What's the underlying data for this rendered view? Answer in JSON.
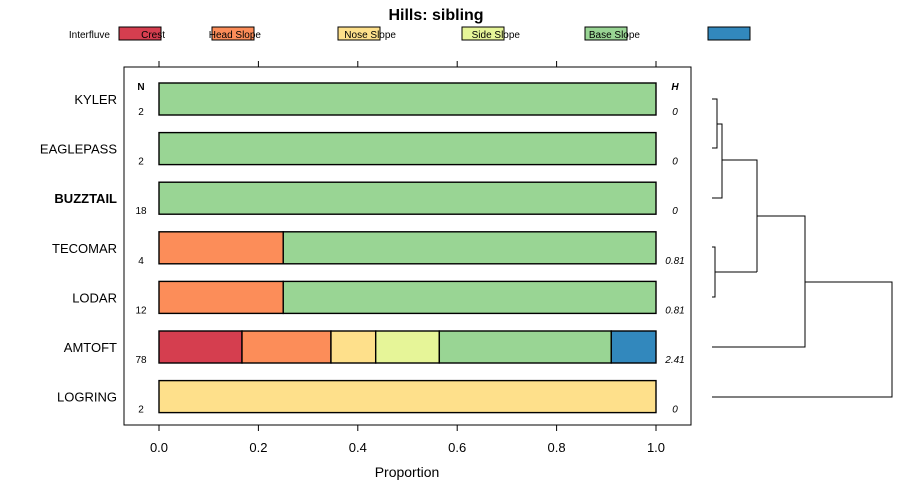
{
  "chart_data": {
    "type": "bar",
    "orientation": "horizontal",
    "stacked": true,
    "title": "Hills: sibling",
    "xlabel": "Proportion",
    "ylabel": "",
    "xlim": [
      -0.07,
      1.07
    ],
    "xticks": [
      0.0,
      0.2,
      0.4,
      0.6,
      0.8,
      1.0
    ],
    "xtick_labels": [
      "0.0",
      "0.2",
      "0.4",
      "0.6",
      "0.8",
      "1.0"
    ],
    "legend_position": "top",
    "n_header": "N",
    "h_header": "H",
    "series": [
      {
        "name": "Interfluve",
        "color": "#d53e4f"
      },
      {
        "name": "Crest",
        "color": "#fc8d59"
      },
      {
        "name": "Head Slope",
        "color": "#fee08b"
      },
      {
        "name": "Nose Slope",
        "color": "#e6f598"
      },
      {
        "name": "Side Slope",
        "color": "#99d594"
      },
      {
        "name": "Base Slope",
        "color": "#3288bd"
      }
    ],
    "categories": [
      {
        "label": "KYLER",
        "bold": false,
        "n": "2",
        "h": "0",
        "values": [
          0,
          0,
          0,
          0,
          1.0,
          0
        ]
      },
      {
        "label": "EAGLEPASS",
        "bold": false,
        "n": "2",
        "h": "0",
        "values": [
          0,
          0,
          0,
          0,
          1.0,
          0
        ]
      },
      {
        "label": "BUZZTAIL",
        "bold": true,
        "n": "18",
        "h": "0",
        "values": [
          0,
          0,
          0,
          0,
          1.0,
          0
        ]
      },
      {
        "label": "TECOMAR",
        "bold": false,
        "n": "4",
        "h": "0.81",
        "values": [
          0,
          0.25,
          0,
          0,
          0.75,
          0
        ]
      },
      {
        "label": "LODAR",
        "bold": false,
        "n": "12",
        "h": "0.81",
        "values": [
          0,
          0.25,
          0,
          0,
          0.75,
          0
        ]
      },
      {
        "label": "AMTOFT",
        "bold": false,
        "n": "78",
        "h": "2.41",
        "values": [
          0.167,
          0.179,
          0.09,
          0.128,
          0.346,
          0.09
        ]
      },
      {
        "label": "LOGRING",
        "bold": false,
        "n": "2",
        "h": "0",
        "values": [
          0,
          0,
          1.0,
          0,
          0,
          0
        ]
      }
    ],
    "dendrogram": {
      "description": "hierarchical clustering of rows",
      "merges": [
        {
          "a": "KYLER",
          "b": "EAGLEPASS",
          "height": 0.02
        },
        {
          "a": "KYLER+EAGLEPASS",
          "b": "BUZZTAIL",
          "height": 0.04
        },
        {
          "a": "TECOMAR",
          "b": "LODAR",
          "height": 0.02
        },
        {
          "a": "KYLER+EAGLEPASS+BUZZTAIL",
          "b": "TECOMAR+LODAR",
          "height": 0.25
        },
        {
          "a": "AMTOFT",
          "b": "KYLER+EAGLEPASS+BUZZTAIL+TECOMAR+LODAR",
          "height": 0.52
        },
        {
          "a": "LOGRING",
          "b": "ALL_OTHERS",
          "height": 1.0
        }
      ]
    }
  }
}
